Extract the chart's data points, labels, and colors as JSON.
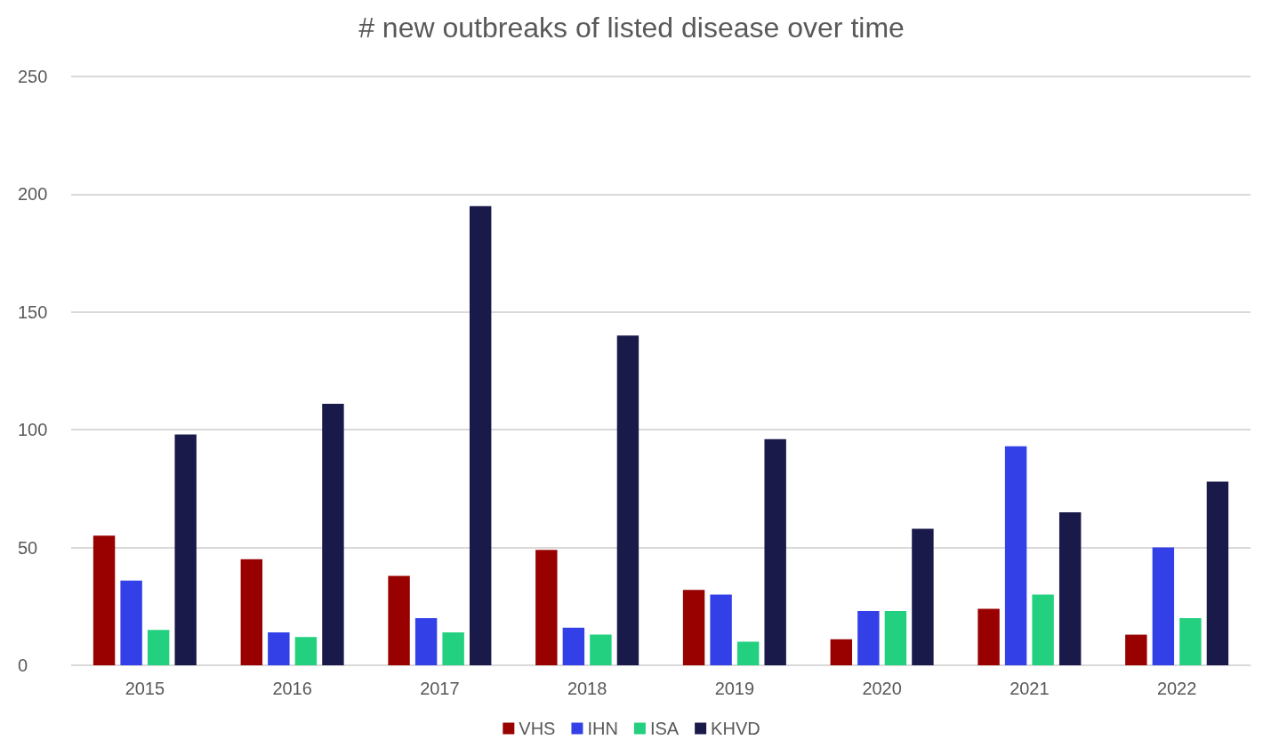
{
  "chart_data": {
    "type": "bar",
    "title": "# new outbreaks of listed disease over time",
    "categories": [
      "2015",
      "2016",
      "2017",
      "2018",
      "2019",
      "2020",
      "2021",
      "2022"
    ],
    "series": [
      {
        "name": "VHS",
        "color": "#990000",
        "values": [
          55,
          45,
          38,
          49,
          32,
          11,
          24,
          13
        ]
      },
      {
        "name": "IHN",
        "color": "#3340e8",
        "values": [
          36,
          14,
          20,
          16,
          30,
          23,
          93,
          50
        ]
      },
      {
        "name": "ISA",
        "color": "#22d07f",
        "values": [
          15,
          12,
          14,
          13,
          10,
          23,
          30,
          20
        ]
      },
      {
        "name": "KHVD",
        "color": "#1a1a4a",
        "values": [
          98,
          111,
          195,
          140,
          96,
          58,
          65,
          78
        ]
      }
    ],
    "ylim": [
      0,
      250
    ],
    "yticks": [
      0,
      50,
      100,
      150,
      200,
      250
    ],
    "grid": "y",
    "legend": "bottom"
  }
}
